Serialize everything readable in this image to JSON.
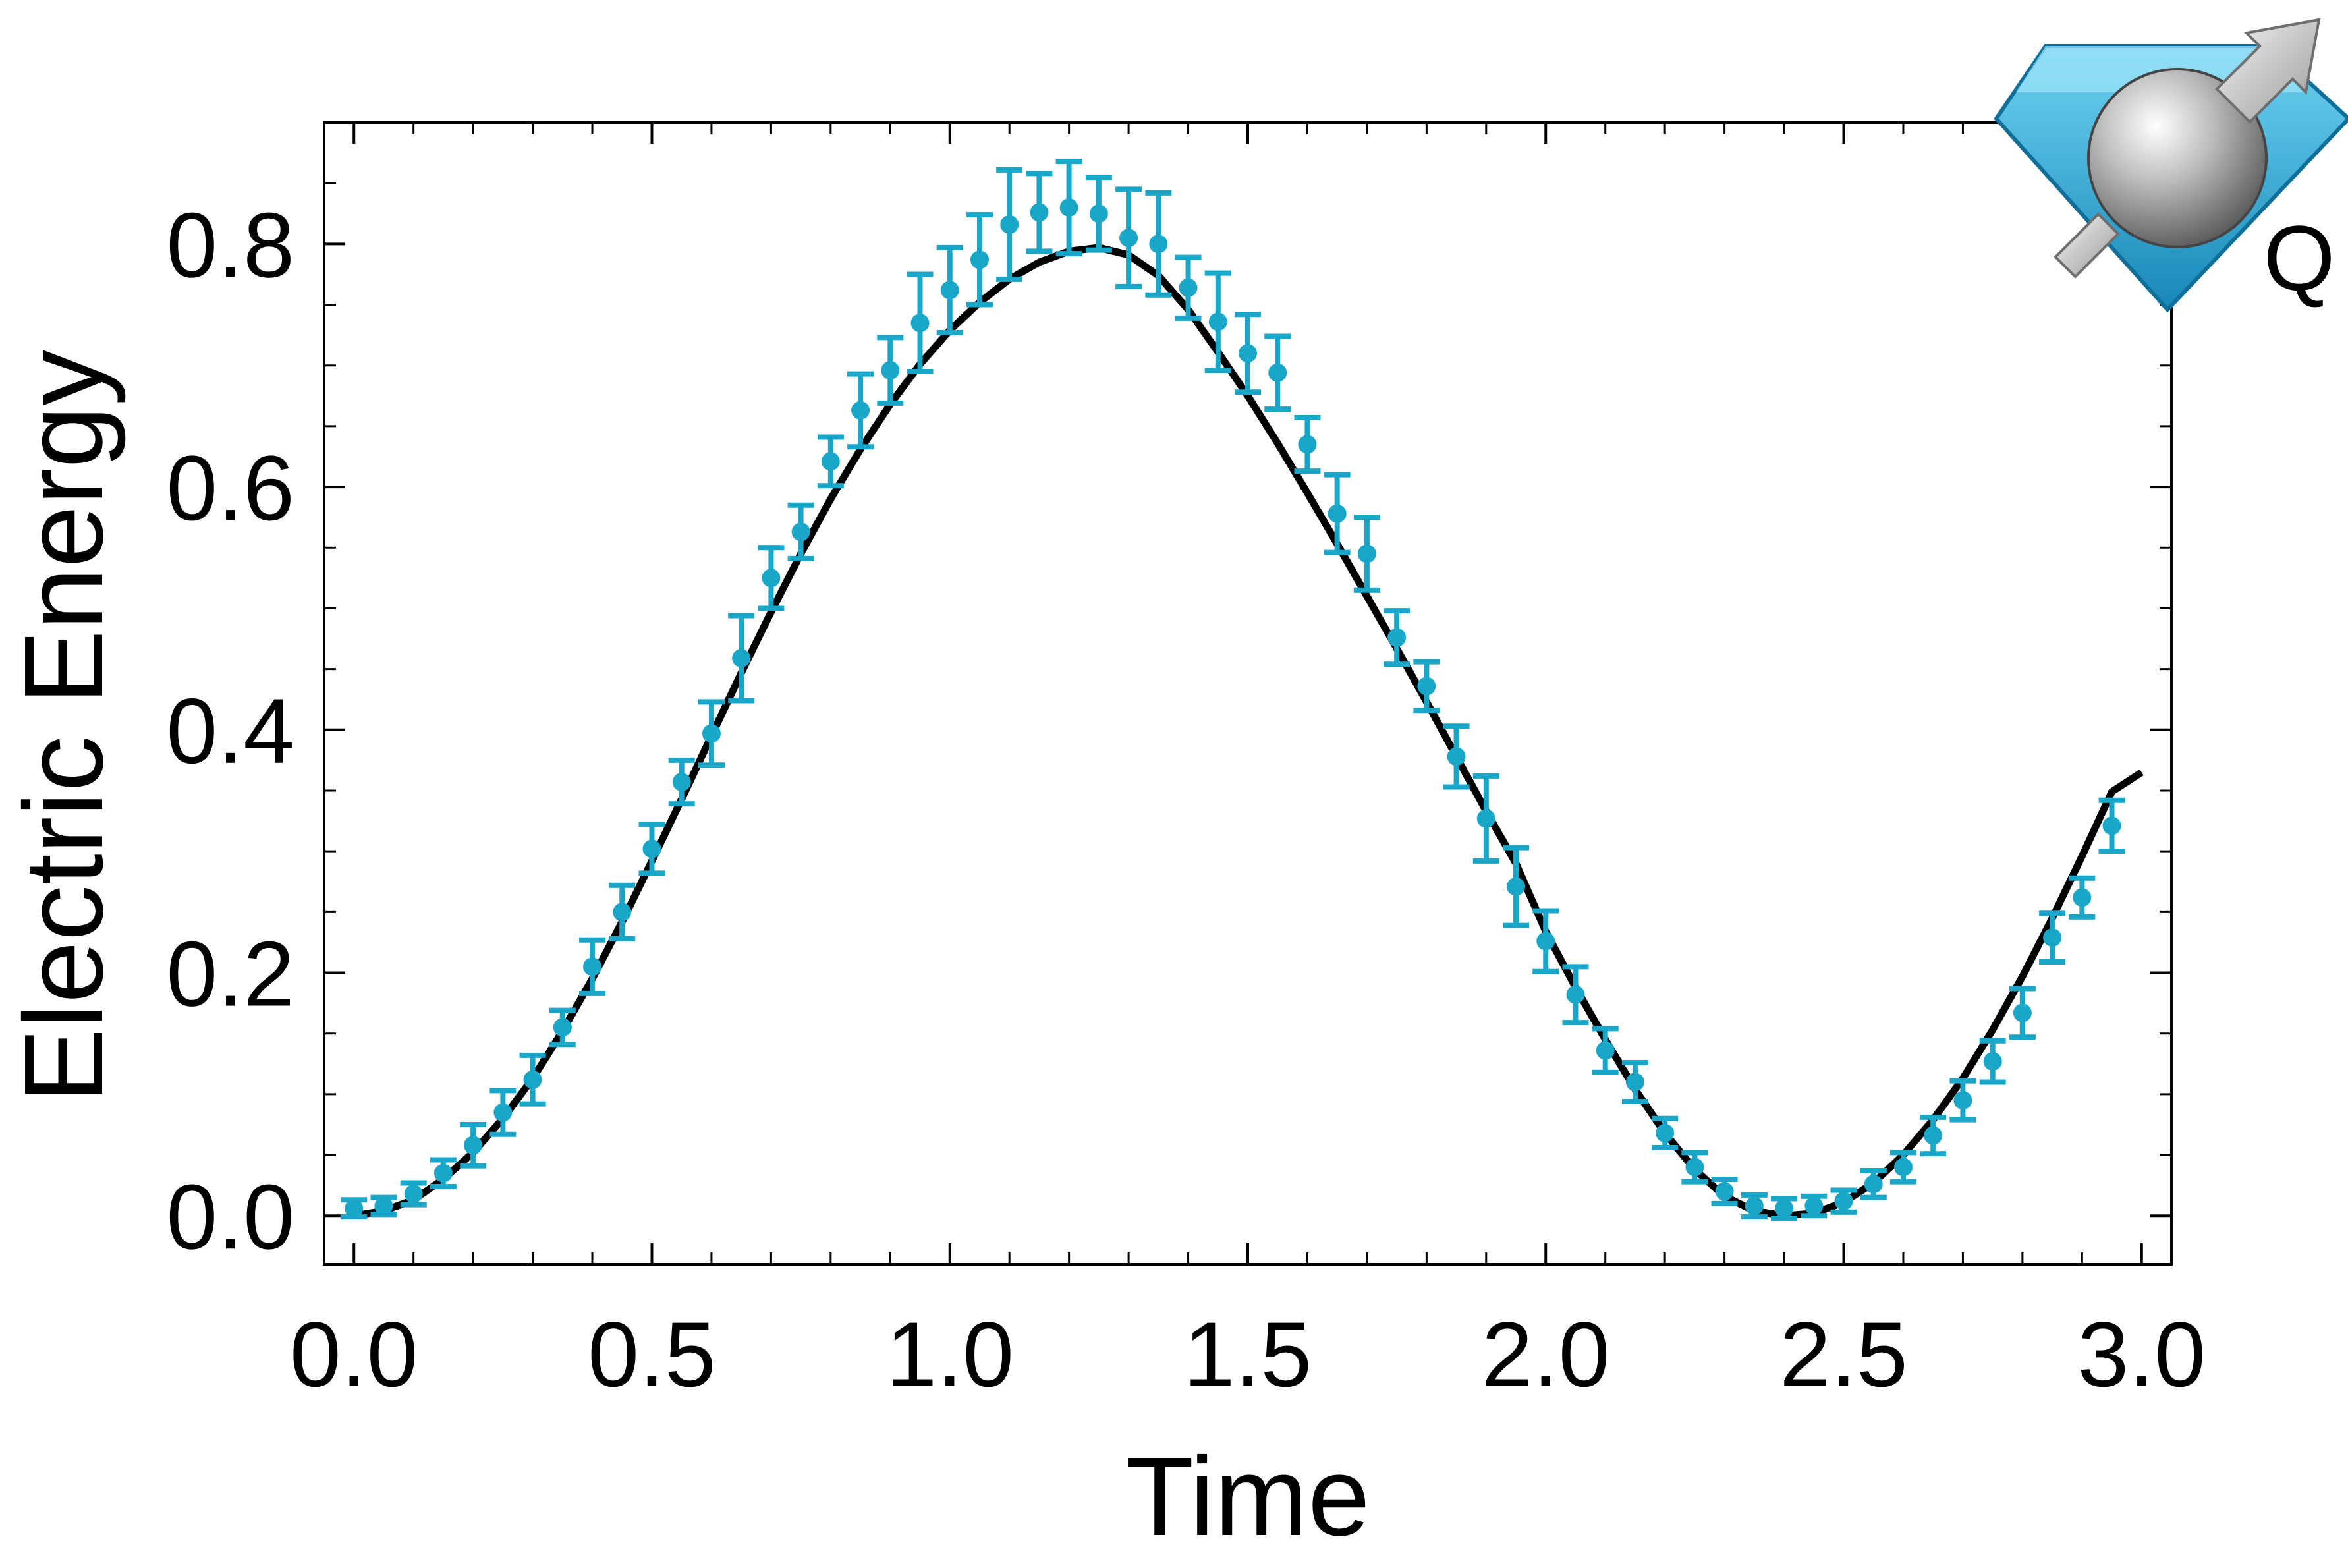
{
  "chart_data": {
    "type": "line",
    "title": "",
    "xlabel": "Time",
    "ylabel": "Electric Energy",
    "xlim": [
      -0.05,
      3.05
    ],
    "ylim": [
      -0.04,
      0.9
    ],
    "xticks": [
      "0.0",
      "0.5",
      "1.0",
      "1.5",
      "2.0",
      "2.5",
      "3.0"
    ],
    "yticks": [
      "0.0",
      "0.2",
      "0.4",
      "0.6",
      "0.8"
    ],
    "grid": false,
    "legend": "none",
    "series": [
      {
        "kind": "line",
        "color": "#000000",
        "x": [
          0.0,
          0.05,
          0.1,
          0.15,
          0.2,
          0.25,
          0.3,
          0.35,
          0.4,
          0.45,
          0.5,
          0.55,
          0.6,
          0.65,
          0.7,
          0.75,
          0.8,
          0.85,
          0.9,
          0.95,
          1.0,
          1.05,
          1.1,
          1.15,
          1.2,
          1.25,
          1.3,
          1.35,
          1.4,
          1.45,
          1.5,
          1.55,
          1.6,
          1.65,
          1.7,
          1.75,
          1.8,
          1.85,
          1.9,
          1.95,
          2.0,
          2.05,
          2.1,
          2.15,
          2.2,
          2.25,
          2.3,
          2.35,
          2.4,
          2.45,
          2.5,
          2.55,
          2.6,
          2.65,
          2.7,
          2.75,
          2.8,
          2.85,
          2.9,
          2.95,
          3.0
        ],
        "y": [
          0.0,
          0.004,
          0.013,
          0.03,
          0.052,
          0.08,
          0.113,
          0.152,
          0.195,
          0.242,
          0.292,
          0.343,
          0.395,
          0.447,
          0.497,
          0.545,
          0.59,
          0.631,
          0.668,
          0.701,
          0.729,
          0.752,
          0.771,
          0.785,
          0.794,
          0.797,
          0.791,
          0.774,
          0.746,
          0.711,
          0.675,
          0.636,
          0.595,
          0.553,
          0.51,
          0.467,
          0.423,
          0.378,
          0.333,
          0.29,
          0.234,
          0.188,
          0.145,
          0.104,
          0.068,
          0.038,
          0.016,
          0.004,
          0.0,
          0.002,
          0.011,
          0.027,
          0.05,
          0.079,
          0.113,
          0.153,
          0.197,
          0.245,
          0.296,
          0.349,
          0.365
        ]
      },
      {
        "kind": "errorbar",
        "color": "#1aa6c8",
        "x": [
          0.0,
          0.05,
          0.1,
          0.15,
          0.2,
          0.25,
          0.3,
          0.35,
          0.4,
          0.45,
          0.5,
          0.55,
          0.6,
          0.65,
          0.7,
          0.75,
          0.8,
          0.85,
          0.9,
          0.95,
          1.0,
          1.05,
          1.1,
          1.15,
          1.2,
          1.25,
          1.3,
          1.35,
          1.4,
          1.45,
          1.5,
          1.55,
          1.6,
          1.65,
          1.7,
          1.75,
          1.8,
          1.85,
          1.9,
          1.95,
          2.0,
          2.05,
          2.1,
          2.15,
          2.2,
          2.25,
          2.3,
          2.35,
          2.4,
          2.45,
          2.5,
          2.55,
          2.6,
          2.65,
          2.7,
          2.75,
          2.8,
          2.85,
          2.9,
          2.95
        ],
        "y": [
          0.006,
          0.008,
          0.018,
          0.035,
          0.058,
          0.085,
          0.112,
          0.155,
          0.205,
          0.25,
          0.302,
          0.357,
          0.397,
          0.459,
          0.525,
          0.563,
          0.621,
          0.663,
          0.696,
          0.735,
          0.762,
          0.787,
          0.816,
          0.826,
          0.83,
          0.825,
          0.805,
          0.8,
          0.764,
          0.736,
          0.71,
          0.694,
          0.635,
          0.578,
          0.545,
          0.476,
          0.436,
          0.378,
          0.327,
          0.271,
          0.226,
          0.182,
          0.136,
          0.11,
          0.068,
          0.04,
          0.02,
          0.008,
          0.006,
          0.008,
          0.012,
          0.026,
          0.04,
          0.066,
          0.095,
          0.127,
          0.167,
          0.229,
          0.262,
          0.321
        ],
        "err": [
          0.007,
          0.007,
          0.009,
          0.011,
          0.017,
          0.018,
          0.02,
          0.014,
          0.022,
          0.022,
          0.02,
          0.018,
          0.026,
          0.035,
          0.025,
          0.022,
          0.02,
          0.03,
          0.027,
          0.04,
          0.035,
          0.037,
          0.045,
          0.032,
          0.038,
          0.03,
          0.04,
          0.042,
          0.025,
          0.04,
          0.032,
          0.03,
          0.022,
          0.032,
          0.03,
          0.022,
          0.02,
          0.025,
          0.035,
          0.032,
          0.025,
          0.023,
          0.018,
          0.016,
          0.012,
          0.012,
          0.01,
          0.009,
          0.008,
          0.008,
          0.009,
          0.011,
          0.012,
          0.015,
          0.016,
          0.017,
          0.02,
          0.02,
          0.016,
          0.021
        ]
      }
    ]
  },
  "logo": {
    "letter": "Q",
    "icon": "diamond-qubit-logo-icon",
    "colors": {
      "diamond": "#2aa9d6",
      "sphere": "#b5b5b5",
      "arrow": "#d8d8d8"
    }
  }
}
